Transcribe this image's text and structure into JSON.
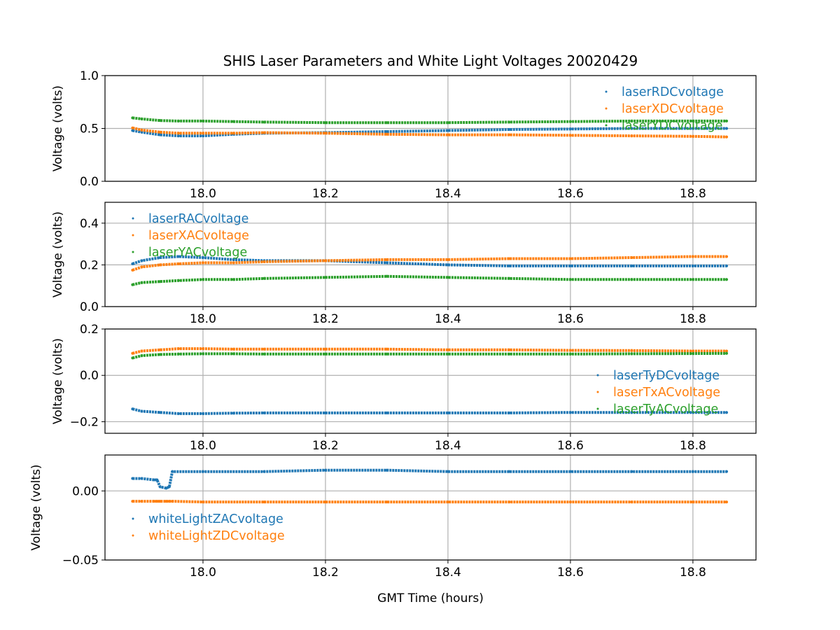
{
  "chart_data": {
    "type": "scatter",
    "title": "SHIS Laser Parameters and White Light Voltages 20020429",
    "xlabel": "GMT Time (hours)",
    "xlim": [
      17.84,
      18.903
    ],
    "xticks": [
      18.0,
      18.2,
      18.4,
      18.6,
      18.8
    ],
    "xtick_labels": [
      "18.0",
      "18.2",
      "18.4",
      "18.6",
      "18.8"
    ],
    "grid": true,
    "panels": [
      {
        "ylabel": "Voltage (volts)",
        "ylim": [
          0,
          1
        ],
        "yticks": [
          0,
          0.5,
          1.0
        ],
        "ytick_labels": [
          "0.0",
          "0.5",
          "1.0"
        ],
        "legend": "upper-right",
        "x": [
          17.885,
          17.9,
          17.93,
          17.96,
          18.0,
          18.05,
          18.1,
          18.2,
          18.3,
          18.4,
          18.5,
          18.6,
          18.7,
          18.8,
          18.855
        ],
        "series": [
          {
            "name": "laserRDCvoltage",
            "color": "#1f77b4",
            "values": [
              0.48,
              0.465,
              0.44,
              0.43,
              0.43,
              0.445,
              0.455,
              0.46,
              0.47,
              0.48,
              0.49,
              0.495,
              0.5,
              0.5,
              0.5
            ]
          },
          {
            "name": "laserXDCvoltage",
            "color": "#ff7f0e",
            "values": [
              0.505,
              0.485,
              0.465,
              0.455,
              0.455,
              0.455,
              0.46,
              0.455,
              0.445,
              0.44,
              0.44,
              0.435,
              0.43,
              0.425,
              0.42
            ]
          },
          {
            "name": "laserYDCvoltage",
            "color": "#2ca02c",
            "values": [
              0.6,
              0.59,
              0.575,
              0.57,
              0.57,
              0.565,
              0.56,
              0.555,
              0.555,
              0.555,
              0.56,
              0.565,
              0.57,
              0.57,
              0.57
            ]
          }
        ]
      },
      {
        "ylabel": "Voltage (volts)",
        "ylim": [
          0,
          0.5
        ],
        "yticks": [
          0,
          0.2,
          0.4
        ],
        "ytick_labels": [
          "0.0",
          "0.2",
          "0.4"
        ],
        "legend": "upper-left",
        "x": [
          17.885,
          17.9,
          17.93,
          17.96,
          18.0,
          18.05,
          18.1,
          18.2,
          18.3,
          18.4,
          18.5,
          18.6,
          18.7,
          18.8,
          18.855
        ],
        "series": [
          {
            "name": "laserRACvoltage",
            "color": "#1f77b4",
            "values": [
              0.205,
              0.22,
              0.235,
              0.24,
              0.235,
              0.225,
              0.22,
              0.22,
              0.21,
              0.2,
              0.195,
              0.195,
              0.195,
              0.195,
              0.195
            ]
          },
          {
            "name": "laserXACvoltage",
            "color": "#ff7f0e",
            "values": [
              0.175,
              0.19,
              0.2,
              0.205,
              0.21,
              0.21,
              0.215,
              0.22,
              0.225,
              0.225,
              0.23,
              0.23,
              0.235,
              0.24,
              0.24
            ]
          },
          {
            "name": "laserYACvoltage",
            "color": "#2ca02c",
            "values": [
              0.105,
              0.115,
              0.12,
              0.125,
              0.13,
              0.13,
              0.135,
              0.14,
              0.145,
              0.14,
              0.135,
              0.13,
              0.13,
              0.13,
              0.13
            ]
          }
        ]
      },
      {
        "ylabel": "Voltage (volts)",
        "ylim": [
          -0.25,
          0.2
        ],
        "yticks": [
          -0.2,
          0,
          0.2
        ],
        "ytick_labels": [
          "−0.2",
          "0.0",
          "0.2"
        ],
        "legend": "lower-right",
        "x": [
          17.885,
          17.9,
          17.93,
          17.96,
          18.0,
          18.05,
          18.1,
          18.2,
          18.3,
          18.4,
          18.5,
          18.6,
          18.7,
          18.8,
          18.855
        ],
        "series": [
          {
            "name": "laserTyDCvoltage",
            "color": "#1f77b4",
            "values": [
              -0.145,
              -0.155,
              -0.16,
              -0.165,
              -0.165,
              -0.163,
              -0.162,
              -0.162,
              -0.162,
              -0.162,
              -0.162,
              -0.16,
              -0.16,
              -0.16,
              -0.16
            ]
          },
          {
            "name": "laserTxACvoltage",
            "color": "#ff7f0e",
            "values": [
              0.095,
              0.105,
              0.11,
              0.115,
              0.115,
              0.113,
              0.113,
              0.113,
              0.113,
              0.11,
              0.11,
              0.108,
              0.107,
              0.105,
              0.105
            ]
          },
          {
            "name": "laserTyACvoltage",
            "color": "#2ca02c",
            "values": [
              0.075,
              0.085,
              0.09,
              0.092,
              0.093,
              0.093,
              0.092,
              0.092,
              0.092,
              0.092,
              0.092,
              0.092,
              0.093,
              0.094,
              0.095
            ]
          }
        ]
      },
      {
        "ylabel": "Voltage (volts)",
        "ylim": [
          -0.05,
          0.026
        ],
        "yticks": [
          -0.05,
          0
        ],
        "ytick_labels": [
          "−0.05",
          "0.00"
        ],
        "legend": "lower-left",
        "x": [
          17.885,
          17.9,
          17.92,
          17.925,
          17.93,
          17.94,
          17.945,
          17.95,
          18.0,
          18.1,
          18.2,
          18.3,
          18.4,
          18.5,
          18.6,
          18.7,
          18.8,
          18.855
        ],
        "series": [
          {
            "name": "whiteLightZACvoltage",
            "color": "#1f77b4",
            "values": [
              0.009,
              0.009,
              0.008,
              0.008,
              0.003,
              0.002,
              0.003,
              0.014,
              0.014,
              0.014,
              0.015,
              0.015,
              0.014,
              0.014,
              0.014,
              0.014,
              0.014,
              0.014
            ]
          },
          {
            "name": "whiteLightZDCvoltage",
            "color": "#ff7f0e",
            "values": [
              -0.0075,
              -0.0075,
              -0.0075,
              -0.0075,
              -0.0075,
              -0.0075,
              -0.0075,
              -0.0075,
              -0.008,
              -0.008,
              -0.008,
              -0.008,
              -0.008,
              -0.008,
              -0.008,
              -0.008,
              -0.008,
              -0.008
            ]
          }
        ]
      }
    ]
  }
}
